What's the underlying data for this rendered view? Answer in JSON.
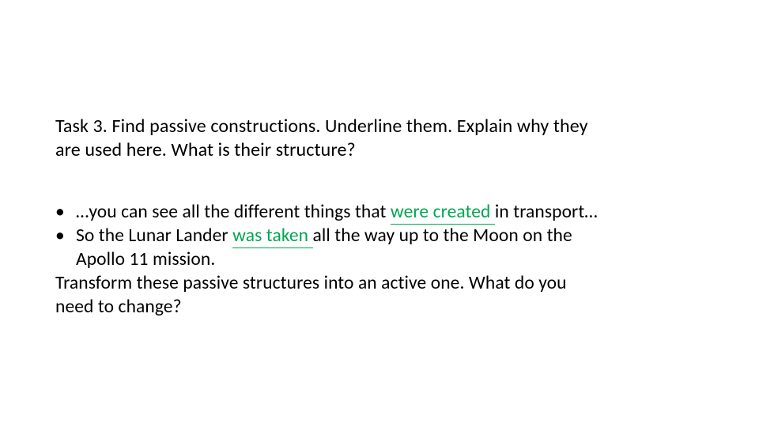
{
  "colors": {
    "text": "#000000",
    "underline": "#00a651",
    "background": "#ffffff"
  },
  "typography": {
    "title_fontsize": 24,
    "body_fontsize": 23.5,
    "line_height": 1.28,
    "font_family": "Segoe UI"
  },
  "title": {
    "line1": "Task 3. Find passive constructions. Underline them. Explain why they",
    "line2": "are used here. What is their structure?"
  },
  "bullets": [
    {
      "pre": "…you can see all the different things that ",
      "underlined": "were created ",
      "post": "in  transport…"
    },
    {
      "pre": "So the Lunar Lander ",
      "underlined": "was  taken ",
      "post": "all the way up to the Moon on  the",
      "cont": "Apollo   11 mission."
    }
  ],
  "followup": {
    "line1": "Transform these passive structures into an active one. What do you",
    "line2": "need to change?"
  },
  "bullet_char": "•"
}
